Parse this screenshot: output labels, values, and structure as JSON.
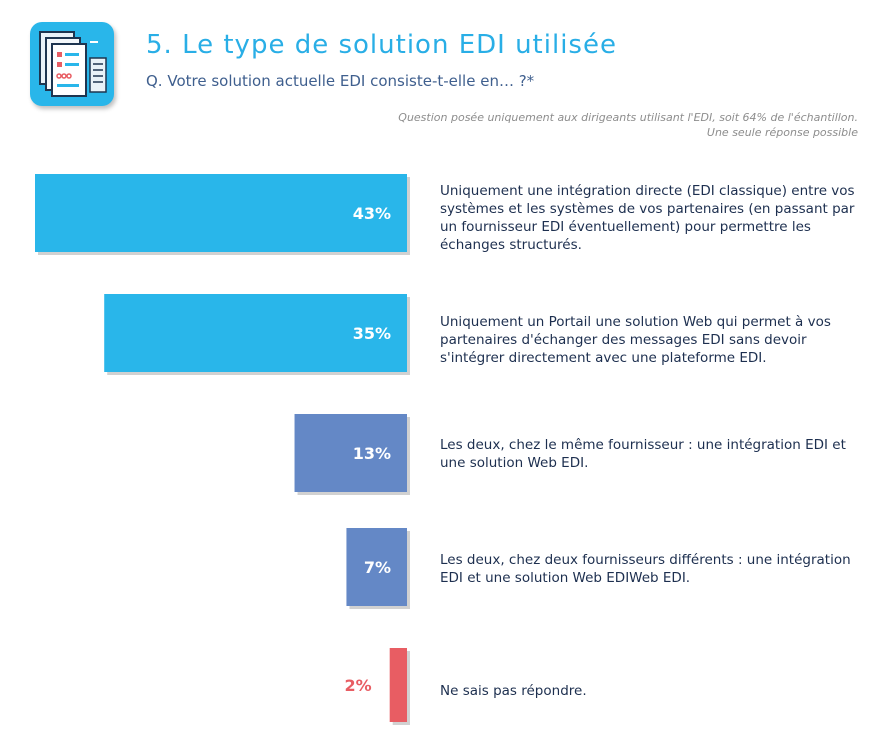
{
  "header": {
    "title": "5. Le type de solution EDI utilisée",
    "question": "Q. Votre solution actuelle EDI consiste-t-elle en… ?*",
    "note_line1": "Question posée uniquement aux dirigeants utilisant l'EDI, soit 64% de l'échantillon.",
    "note_line2": "Une seule réponse possible"
  },
  "chart_data": {
    "type": "bar",
    "orientation": "horizontal",
    "grid": false,
    "value_unit": "%",
    "xlim": [
      0,
      43
    ],
    "categories": [
      "Uniquement une intégration directe (EDI classique) entre vos systèmes et les systèmes de vos partenaires (en passant par un fournisseur EDI éventuellement) pour permettre les échanges structurés.",
      "Uniquement un Portail une solution Web qui permet à vos partenaires d'échanger des messages EDI sans devoir s'intégrer directement avec une plateforme EDI.",
      "Les deux, chez le même fournisseur : une intégration EDI et une solution Web EDI.",
      "Les deux, chez deux fournisseurs différents : une intégration EDI et une solution Web EDIWeb EDI.",
      "Ne sais pas répondre."
    ],
    "values": [
      43,
      35,
      13,
      7,
      2
    ],
    "value_labels": [
      "43%",
      "35%",
      "13%",
      "7%",
      "2%"
    ],
    "colors": [
      "#29b6ea",
      "#29b6ea",
      "#6488c6",
      "#6488c6",
      "#e85d63"
    ],
    "value_label_colors": [
      "#ffffff",
      "#ffffff",
      "#ffffff",
      "#ffffff",
      "#e85d63"
    ]
  }
}
